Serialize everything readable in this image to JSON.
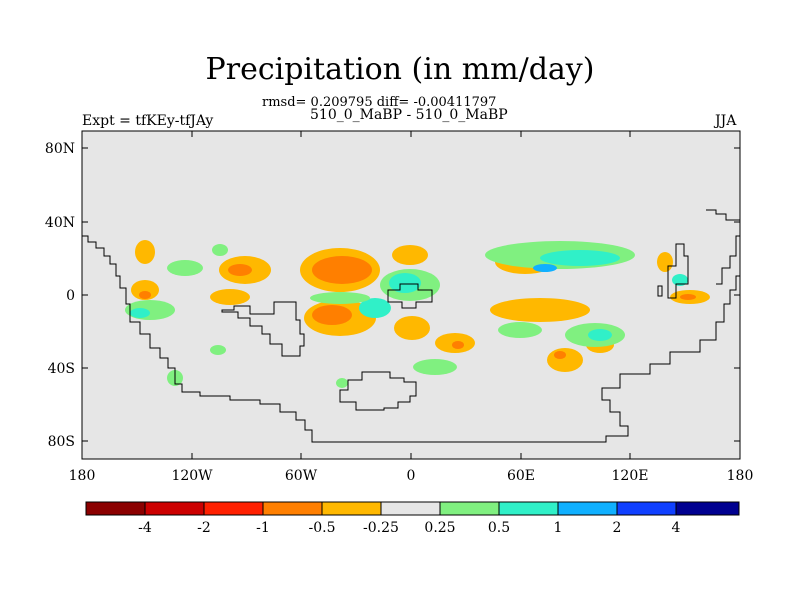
{
  "title": "Precipitation (in mm/day)",
  "stats": "rmsd= 0.209795 diff= -0.00411797",
  "cases": "510_0_MaBP - 510_0_MaBP",
  "experiment": "Expt = tfKEy-tfJAy",
  "season": "JJA",
  "axes": {
    "y_ticks": [
      "80N",
      "40N",
      "0",
      "40S",
      "80S"
    ],
    "x_ticks": [
      "180",
      "120W",
      "60W",
      "0",
      "60E",
      "120E",
      "180"
    ]
  },
  "colorbar": {
    "colors": [
      "#8B0000",
      "#CC0000",
      "#FF2000",
      "#FF7F00",
      "#FFB800",
      "#E6E6E6",
      "#80F080",
      "#30F0C8",
      "#10B0FF",
      "#1040FF",
      "#000090"
    ],
    "labels": [
      "-4",
      "-2",
      "-1",
      "-0.5",
      "-0.25",
      "0.25",
      "0.5",
      "1",
      "2",
      "4"
    ]
  },
  "colors": {
    "background": "#e6e6e6",
    "coastline": "#000000"
  }
}
